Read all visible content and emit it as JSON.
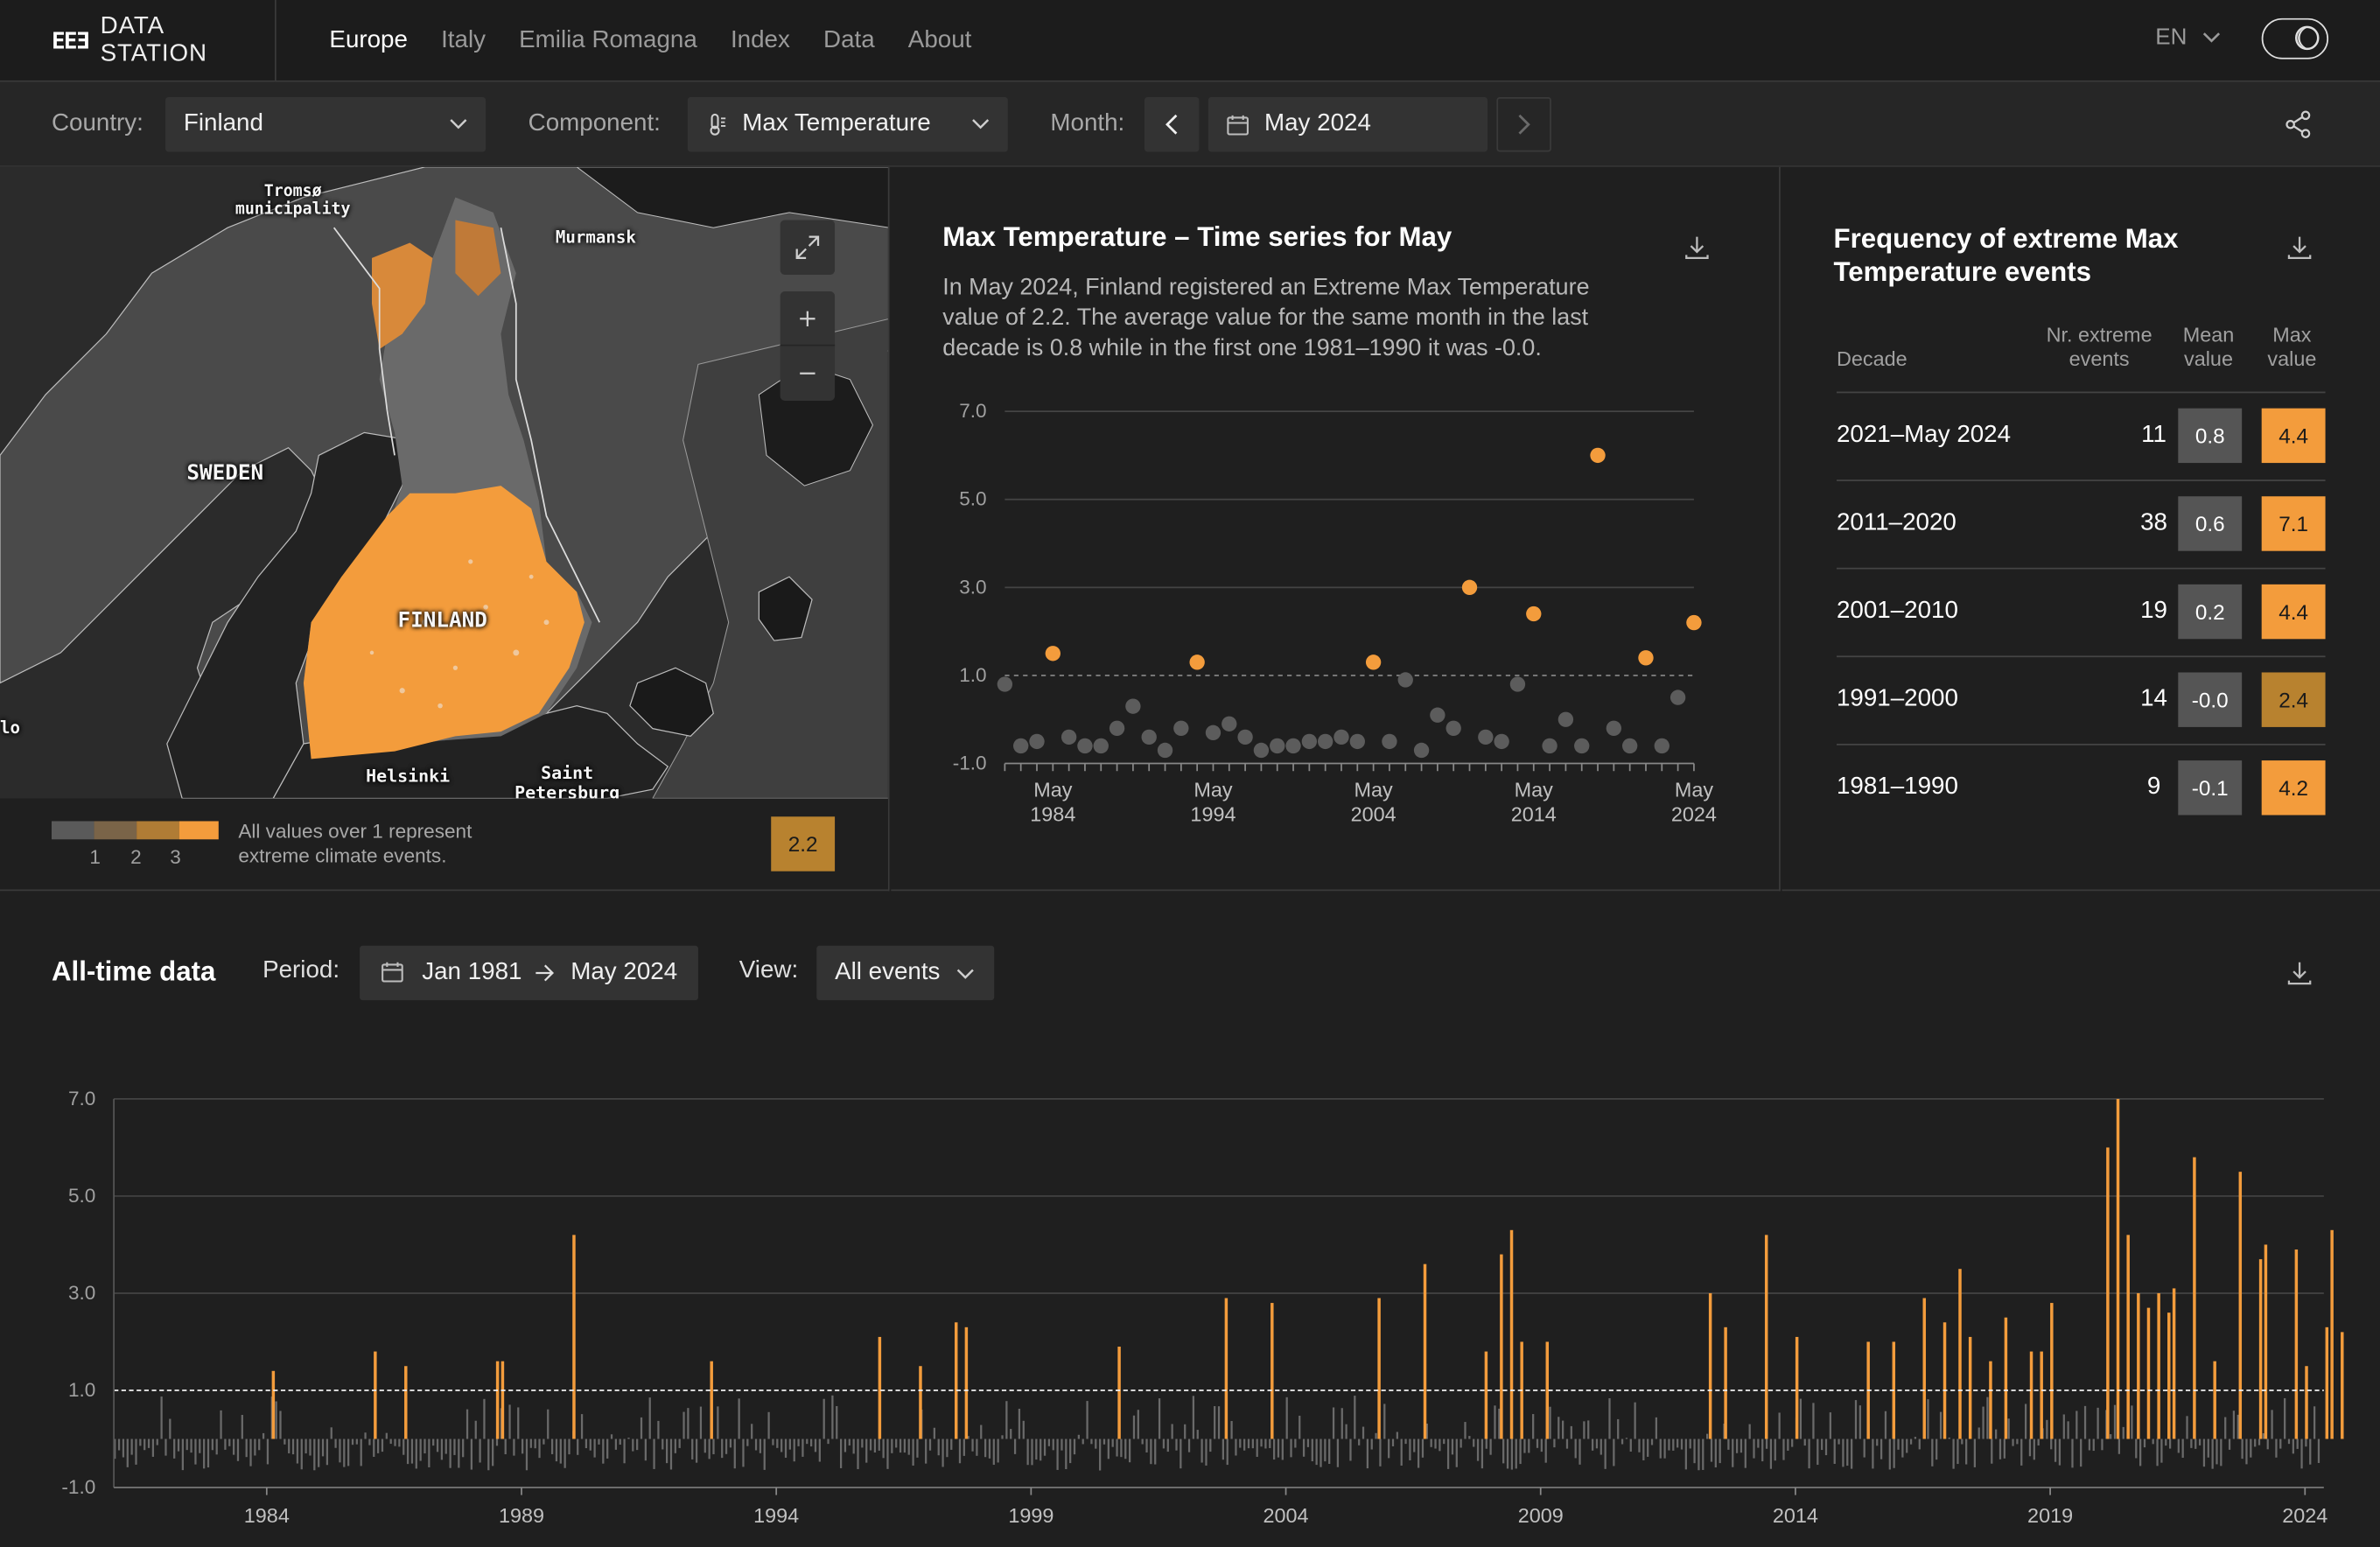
{
  "brand": {
    "logo": "EEƎ",
    "name": "DATA STATION"
  },
  "nav": {
    "items": [
      "Europe",
      "Italy",
      "Emilia Romagna",
      "Index",
      "Data",
      "About"
    ],
    "active": 0
  },
  "lang": "EN",
  "filters": {
    "country_label": "Country:",
    "country_value": "Finland",
    "component_label": "Component:",
    "component_value": "Max Temperature",
    "month_label": "Month:",
    "month_value": "May 2024"
  },
  "map": {
    "labels": {
      "tromso": "Tromsø\nmunicipality",
      "murmansk": "Murmansk",
      "sweden": "SWEDEN",
      "finland": "FINLAND",
      "helsinki": "Helsinki",
      "saint": "Saint\nPetersburg",
      "oslo": "lo"
    },
    "legend_numbers": [
      "1",
      "2",
      "3"
    ],
    "legend_text": "All values over 1 represent extreme climate events.",
    "value": "2.2",
    "colors": {
      "low": "#5a5a5a",
      "mid1": "#7a6448",
      "mid2": "#b07c35",
      "high": "#f39c3c"
    }
  },
  "timeseries": {
    "title": "Max Temperature – Time series for May",
    "description": "In May 2024, Finland registered an Extreme Max Temperature value of 2.2. The average value for the same month in the last decade is 0.8 while in the first one 1981–1990 it was -0.0."
  },
  "frequency": {
    "title": "Frequency of extreme Max Temperature events",
    "headers": {
      "decade": "Decade",
      "count": "Nr. extreme events",
      "mean": "Mean value",
      "max": "Max value"
    },
    "rows": [
      {
        "decade": "2021–May 2024",
        "count": "11",
        "mean": "0.8",
        "max": "4.4",
        "max_color": "#f39c3c"
      },
      {
        "decade": "2011–2020",
        "count": "38",
        "mean": "0.6",
        "max": "7.1",
        "max_color": "#f39c3c"
      },
      {
        "decade": "2001–2010",
        "count": "19",
        "mean": "0.2",
        "max": "4.4",
        "max_color": "#f39c3c"
      },
      {
        "decade": "1991–2000",
        "count": "14",
        "mean": "-0.0",
        "max": "2.4",
        "max_color": "#b8822f"
      },
      {
        "decade": "1981–1990",
        "count": "9",
        "mean": "-0.1",
        "max": "4.2",
        "max_color": "#f39c3c"
      }
    ]
  },
  "alltime": {
    "title": "All-time data",
    "period_label": "Period:",
    "period_from": "Jan 1981",
    "period_to": "May 2024",
    "view_label": "View:",
    "view_value": "All events"
  },
  "chart_data": [
    {
      "type": "scatter",
      "x": [
        1981,
        1982,
        1983,
        1984,
        1985,
        1986,
        1987,
        1988,
        1989,
        1990,
        1991,
        1992,
        1993,
        1994,
        1995,
        1996,
        1997,
        1998,
        1999,
        2000,
        2001,
        2002,
        2003,
        2004,
        2005,
        2006,
        2007,
        2008,
        2009,
        2010,
        2011,
        2012,
        2013,
        2014,
        2015,
        2016,
        2017,
        2018,
        2019,
        2020,
        2021,
        2022,
        2023,
        2024
      ],
      "y": [
        0.8,
        -0.6,
        -0.5,
        1.5,
        -0.4,
        -0.6,
        -0.6,
        -0.2,
        0.3,
        -0.4,
        -0.7,
        -0.2,
        1.3,
        -0.3,
        -0.1,
        -0.4,
        -0.7,
        -0.6,
        -0.6,
        -0.5,
        -0.5,
        -0.4,
        -0.5,
        1.3,
        -0.5,
        0.9,
        -0.7,
        0.1,
        -0.2,
        3.0,
        -0.4,
        -0.5,
        0.8,
        2.4,
        -0.6,
        0.0,
        -0.6,
        6.0,
        -0.2,
        -0.6,
        1.4,
        -0.6,
        0.5,
        2.2
      ],
      "ticks_x": [
        "May\n1984",
        "May\n1994",
        "May\n2004",
        "May\n2014",
        "May\n2024"
      ],
      "ticks_x_years": [
        1984,
        1994,
        2004,
        2014,
        2024
      ],
      "ylim": [
        -1.0,
        7.0
      ],
      "yticks": [
        "7.0",
        "5.0",
        "3.0",
        "1.0",
        "-1.0"
      ],
      "threshold": 1.0,
      "colors": {
        "extreme": "#f39c3c",
        "normal": "#5c5c5c"
      }
    },
    {
      "type": "bar",
      "x_start": 1981.0,
      "x_end": 2024.37,
      "ylim": [
        -1.0,
        7.0
      ],
      "yticks": [
        "7.0",
        "5.0",
        "3.0",
        "1.0",
        "-1.0"
      ],
      "xticks": [
        "1984",
        "1989",
        "1994",
        "1999",
        "2004",
        "2009",
        "2014",
        "2019",
        "2024"
      ],
      "xtick_years": [
        1984,
        1989,
        1994,
        1999,
        2004,
        2009,
        2014,
        2019,
        2024
      ],
      "threshold": 1.0,
      "extreme_events": [
        [
          1984.1,
          1.4
        ],
        [
          1986.1,
          1.8
        ],
        [
          1986.7,
          1.5
        ],
        [
          1988.5,
          1.6
        ],
        [
          1988.6,
          1.6
        ],
        [
          1990.0,
          4.2
        ],
        [
          1992.7,
          1.6
        ],
        [
          1996.0,
          2.1
        ],
        [
          1996.8,
          1.5
        ],
        [
          1997.5,
          2.4
        ],
        [
          1997.7,
          2.3
        ],
        [
          2000.7,
          1.9
        ],
        [
          2002.8,
          2.9
        ],
        [
          2003.7,
          2.8
        ],
        [
          2005.8,
          2.9
        ],
        [
          2006.7,
          3.6
        ],
        [
          2007.9,
          1.8
        ],
        [
          2008.2,
          3.8
        ],
        [
          2008.4,
          4.3
        ],
        [
          2008.6,
          2.0
        ],
        [
          2009.1,
          2.0
        ],
        [
          2012.3,
          3.0
        ],
        [
          2012.6,
          2.3
        ],
        [
          2013.4,
          4.2
        ],
        [
          2014.0,
          2.1
        ],
        [
          2015.4,
          2.0
        ],
        [
          2015.9,
          2.0
        ],
        [
          2016.5,
          2.9
        ],
        [
          2016.9,
          2.4
        ],
        [
          2017.2,
          3.5
        ],
        [
          2017.4,
          2.1
        ],
        [
          2017.8,
          1.6
        ],
        [
          2018.1,
          2.5
        ],
        [
          2018.6,
          1.8
        ],
        [
          2018.8,
          1.8
        ],
        [
          2019.0,
          2.8
        ],
        [
          2020.1,
          6.0
        ],
        [
          2020.3,
          7.0
        ],
        [
          2020.5,
          4.2
        ],
        [
          2020.7,
          3.0
        ],
        [
          2020.9,
          2.7
        ],
        [
          2021.1,
          3.0
        ],
        [
          2021.3,
          2.6
        ],
        [
          2021.4,
          3.1
        ],
        [
          2021.8,
          5.8
        ],
        [
          2022.2,
          1.6
        ],
        [
          2022.7,
          5.5
        ],
        [
          2023.1,
          3.7
        ],
        [
          2023.2,
          4.0
        ],
        [
          2023.8,
          3.9
        ],
        [
          2024.0,
          1.5
        ],
        [
          2024.4,
          2.3
        ],
        [
          2024.5,
          4.3
        ],
        [
          2024.7,
          2.2
        ]
      ],
      "colors": {
        "extreme": "#f39c3c",
        "normal": "#6a6a6a"
      }
    }
  ]
}
